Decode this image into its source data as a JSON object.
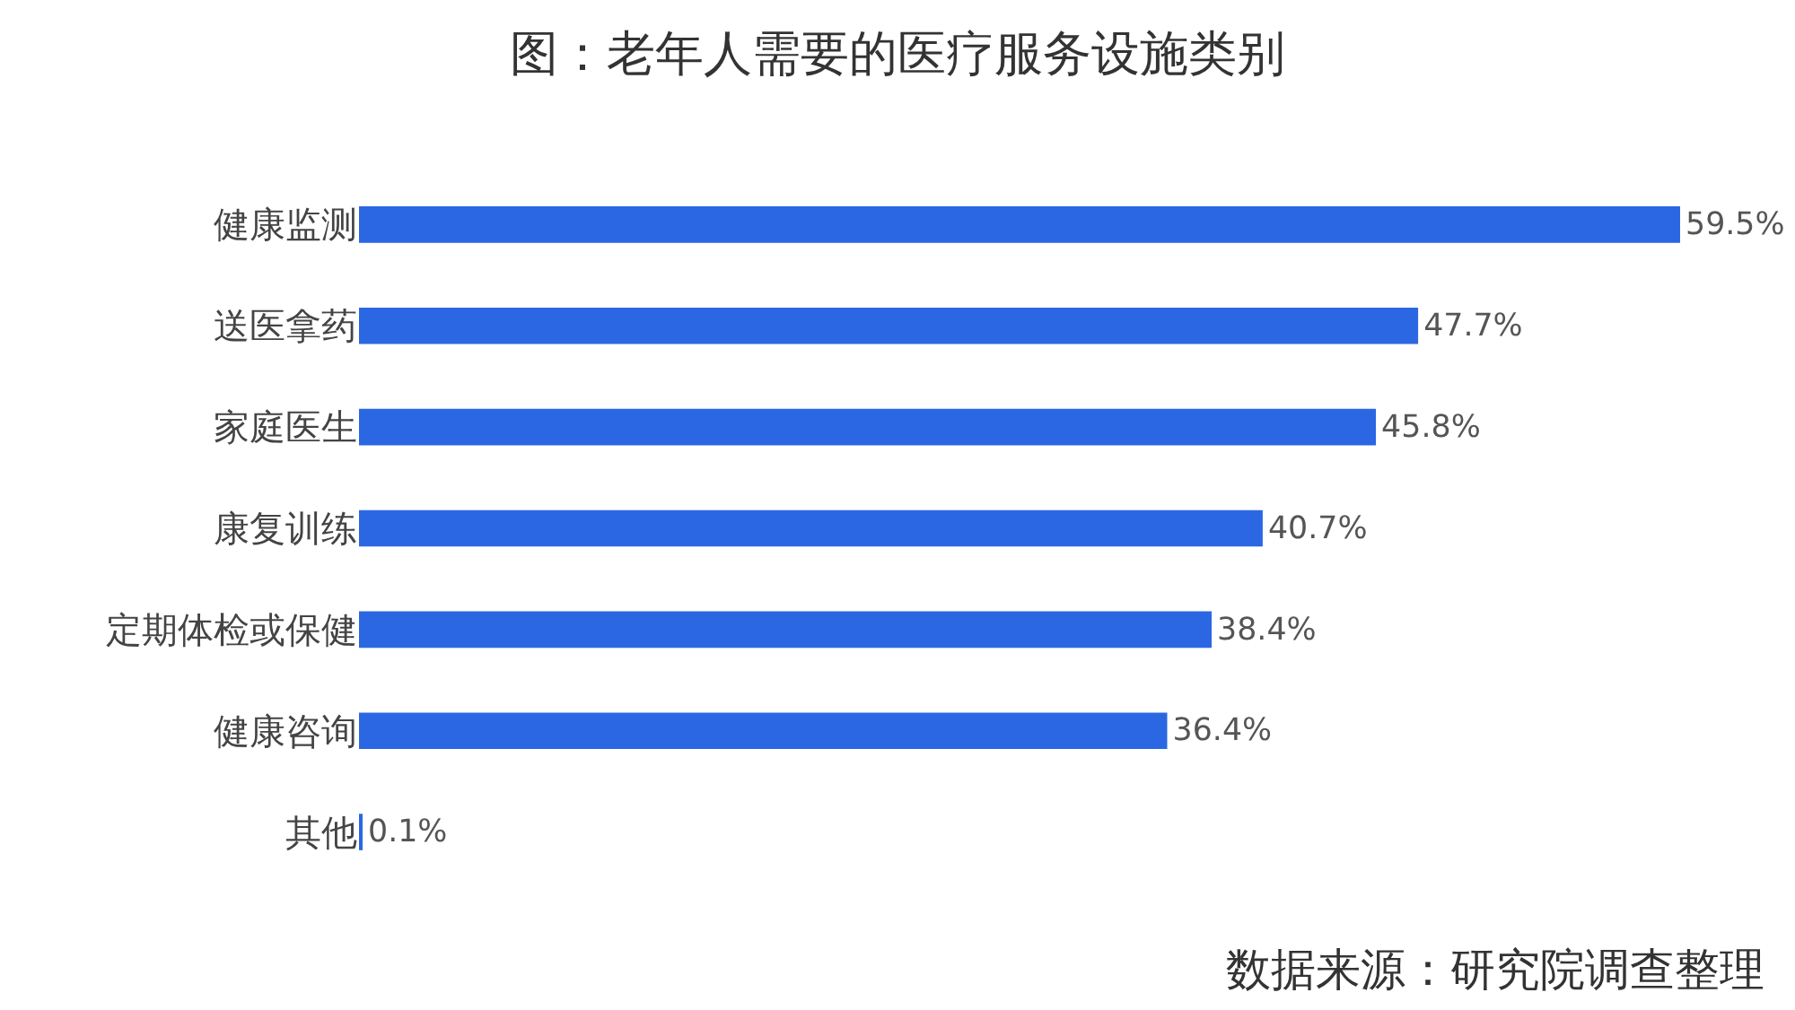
{
  "chart_data": {
    "type": "bar",
    "orientation": "horizontal",
    "title": "图：老年人需要的医疗服务设施类别",
    "categories": [
      "健康监测",
      "送医拿药",
      "家庭医生",
      "康复训练",
      "定期体检或保健",
      "健康咨询",
      "其他"
    ],
    "series": [
      {
        "color": "#2b67e3",
        "values": [
          59.5,
          47.7,
          45.8,
          40.7,
          38.4,
          36.4,
          0.1
        ],
        "value_labels": [
          "59.5%",
          "47.7%",
          "45.8%",
          "40.7%",
          "38.4%",
          "36.4%",
          "0.1%"
        ]
      }
    ],
    "annotations": [
      "数据来源：研究院调查整理"
    ],
    "tick_labels": "y"
  }
}
